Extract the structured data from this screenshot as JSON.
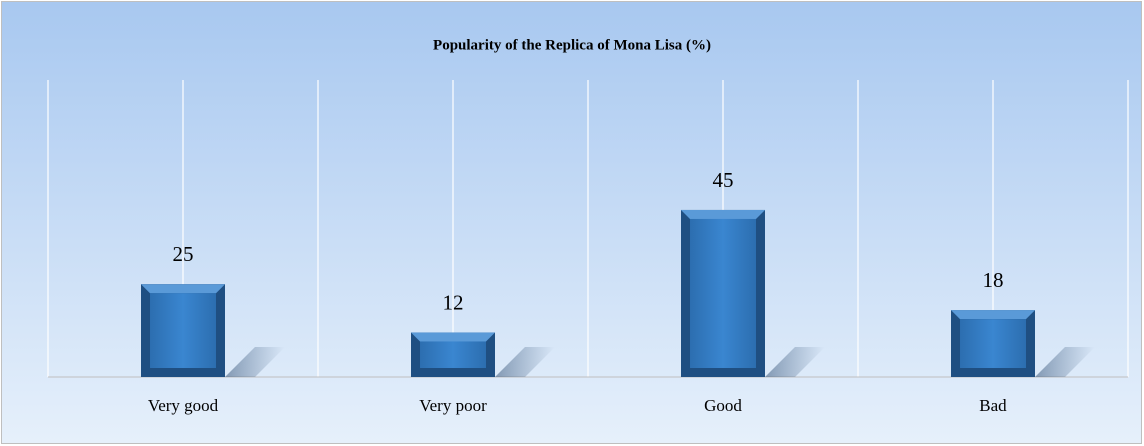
{
  "chart_data": {
    "type": "bar",
    "title": "Popularity of the Replica of Mona Lisa (%)",
    "categories": [
      "Very good",
      "Very poor",
      "Good",
      "Bad"
    ],
    "values": [
      25,
      12,
      45,
      18
    ],
    "color": "#2e75b6",
    "ylim": [
      0,
      80
    ]
  }
}
